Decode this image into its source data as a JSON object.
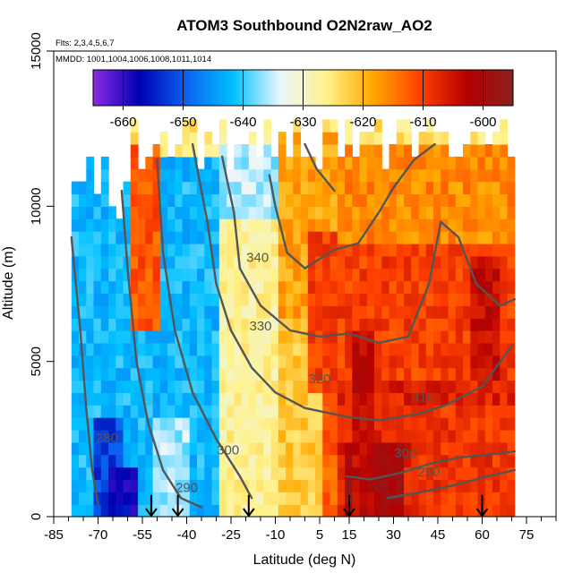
{
  "chart_data": {
    "type": "heatmap",
    "title": "ATOM3 Southbound O2N2raw_AO2",
    "flights_note": "Flts: 2,3,4,5,6,7",
    "dates_note": "MMDD: 1001,1004,1006,1008,1011,1014",
    "xlabel": "Latitude (deg N)",
    "ylabel": "Altitude (m)",
    "xlim": [
      -85,
      85
    ],
    "ylim": [
      0,
      15000
    ],
    "x_ticks": [
      -85,
      -70,
      -55,
      -40,
      -25,
      -10,
      5,
      15,
      30,
      45,
      60,
      75
    ],
    "x_tick_labels": [
      "-85",
      "-70",
      "-55",
      "-40",
      "-25",
      "-10",
      "5",
      "15",
      "30",
      "45",
      "60",
      "75"
    ],
    "x_minor_step": 5,
    "y_ticks": [
      0,
      5000,
      10000,
      15000
    ],
    "y_tick_labels": [
      "0",
      "5000",
      "10000",
      "15000"
    ],
    "colorbar": {
      "min": -665,
      "max": -595,
      "ticks": [
        -660,
        -650,
        -640,
        -630,
        -620,
        -610,
        -600
      ],
      "tick_labels": [
        "-660",
        "-650",
        "-640",
        "-630",
        "-620",
        "-610",
        "-600"
      ],
      "colors": [
        "#8a2be2",
        "#0000b4",
        "#0a64f0",
        "#00c0ff",
        "#eaf6ff",
        "#fff28a",
        "#ffa800",
        "#ff4000",
        "#b50000",
        "#8b2020"
      ]
    },
    "data_extent": {
      "lat": [
        -79,
        71
      ],
      "alt": [
        0,
        12800
      ]
    },
    "regions": [
      {
        "lat": [
          -79,
          -30
        ],
        "alt": [
          0,
          11500
        ],
        "value": -642
      },
      {
        "lat": [
          -72,
          -62
        ],
        "alt": [
          0,
          3200
        ],
        "value": -652
      },
      {
        "lat": [
          -66,
          -56
        ],
        "alt": [
          0,
          1500
        ],
        "value": -658
      },
      {
        "lat": [
          -60,
          -50
        ],
        "alt": [
          6000,
          12000
        ],
        "value": -612
      },
      {
        "lat": [
          -52,
          -38
        ],
        "alt": [
          0,
          3000
        ],
        "value": -636
      },
      {
        "lat": [
          -30,
          -8
        ],
        "alt": [
          0,
          12000
        ],
        "value": -627
      },
      {
        "lat": [
          -28,
          -8
        ],
        "alt": [
          9500,
          12000
        ],
        "value": -636
      },
      {
        "lat": [
          -8,
          10
        ],
        "alt": [
          0,
          12500
        ],
        "value": -622
      },
      {
        "lat": [
          -8,
          10
        ],
        "alt": [
          6500,
          12500
        ],
        "value": -618
      },
      {
        "lat": [
          5,
          20
        ],
        "alt": [
          0,
          4000
        ],
        "value": -613
      },
      {
        "lat": [
          0,
          71
        ],
        "alt": [
          4000,
          9000
        ],
        "value": -610
      },
      {
        "lat": [
          10,
          71
        ],
        "alt": [
          0,
          4500
        ],
        "value": -607
      },
      {
        "lat": [
          14,
          34
        ],
        "alt": [
          0,
          2500
        ],
        "value": -600
      },
      {
        "lat": [
          17,
          24
        ],
        "alt": [
          0,
          6000
        ],
        "value": -603
      },
      {
        "lat": [
          35,
          71
        ],
        "alt": [
          0,
          3500
        ],
        "value": -609
      },
      {
        "lat": [
          10,
          71
        ],
        "alt": [
          9000,
          12000
        ],
        "value": -616
      },
      {
        "lat": [
          55,
          66
        ],
        "alt": [
          4500,
          8500
        ],
        "value": -604
      }
    ],
    "contours": [
      {
        "level": 280,
        "label": "280",
        "points": [
          [
            -79,
            9000
          ],
          [
            -76,
            6000
          ],
          [
            -74,
            3500
          ],
          [
            -72,
            1500
          ],
          [
            -70,
            400
          ]
        ]
      },
      {
        "level": 290,
        "label": "290",
        "points": [
          [
            -62,
            10500
          ],
          [
            -60,
            8000
          ],
          [
            -57,
            5000
          ],
          [
            -53,
            3000
          ],
          [
            -48,
            1500
          ],
          [
            -42,
            600
          ],
          [
            -35,
            300
          ]
        ]
      },
      {
        "level": 300,
        "label": "300",
        "points": [
          [
            -50,
            11500
          ],
          [
            -48,
            8500
          ],
          [
            -44,
            6000
          ],
          [
            -38,
            4000
          ],
          [
            -30,
            2500
          ],
          [
            -22,
            1300
          ],
          [
            -18,
            600
          ]
        ]
      },
      {
        "level": 310,
        "label": "310",
        "points": [
          [
            -38,
            12000
          ],
          [
            -33,
            9500
          ],
          [
            -30,
            7500
          ],
          [
            -25,
            6000
          ],
          [
            -18,
            4800
          ],
          [
            -10,
            4000
          ],
          [
            0,
            3500
          ],
          [
            15,
            3200
          ],
          [
            25,
            3100
          ],
          [
            38,
            3300
          ],
          [
            48,
            3600
          ],
          [
            60,
            4200
          ],
          [
            70,
            5500
          ]
        ]
      },
      {
        "level": 320,
        "label": "320",
        "points": [
          [
            -28,
            11600
          ],
          [
            -24,
            9800
          ],
          [
            -22,
            8000
          ],
          [
            -15,
            6800
          ],
          [
            -5,
            6000
          ],
          [
            5,
            5800
          ],
          [
            15,
            5900
          ],
          [
            25,
            5600
          ],
          [
            35,
            5800
          ],
          [
            42,
            7500
          ],
          [
            46,
            9500
          ],
          [
            52,
            9000
          ],
          [
            58,
            7500
          ],
          [
            66,
            6800
          ],
          [
            71,
            7000
          ]
        ]
      },
      {
        "level": 330,
        "label": "330",
        "points": [
          [
            -12,
            11000
          ],
          [
            -10,
            10000
          ],
          [
            -6,
            8500
          ],
          [
            0,
            8000
          ],
          [
            10,
            8600
          ],
          [
            18,
            8800
          ],
          [
            25,
            9800
          ],
          [
            30,
            10600
          ],
          [
            37,
            11500
          ],
          [
            44,
            12000
          ]
        ]
      },
      {
        "level": 340,
        "label": "340",
        "points": [
          [
            0,
            12000
          ],
          [
            4,
            11200
          ],
          [
            10,
            10500
          ]
        ]
      },
      {
        "level": 300,
        "label": "300",
        "points": [
          [
            14,
            1300
          ],
          [
            22,
            1200
          ],
          [
            32,
            1400
          ],
          [
            42,
            1700
          ],
          [
            52,
            1900
          ],
          [
            62,
            2000
          ],
          [
            71,
            2100
          ]
        ]
      },
      {
        "level": 290,
        "label": "290",
        "points": [
          [
            28,
            600
          ],
          [
            40,
            800
          ],
          [
            50,
            1000
          ],
          [
            62,
            1300
          ],
          [
            71,
            1500
          ]
        ]
      }
    ],
    "contour_labels": [
      {
        "text": "340",
        "lat": -16,
        "alt": 8200
      },
      {
        "text": "330",
        "lat": -15,
        "alt": 6000
      },
      {
        "text": "320",
        "lat": 5,
        "alt": 4300
      },
      {
        "text": "310",
        "lat": 40,
        "alt": 3700
      },
      {
        "text": "300",
        "lat": 34,
        "alt": 1900
      },
      {
        "text": "300",
        "lat": -26,
        "alt": 2000
      },
      {
        "text": "290",
        "lat": 42,
        "alt": 1300
      },
      {
        "text": "290",
        "lat": -40,
        "alt": 800
      },
      {
        "text": "280",
        "lat": -67,
        "alt": 2400
      }
    ],
    "arrows_lat": [
      -52,
      -43,
      -19,
      15,
      60
    ]
  }
}
